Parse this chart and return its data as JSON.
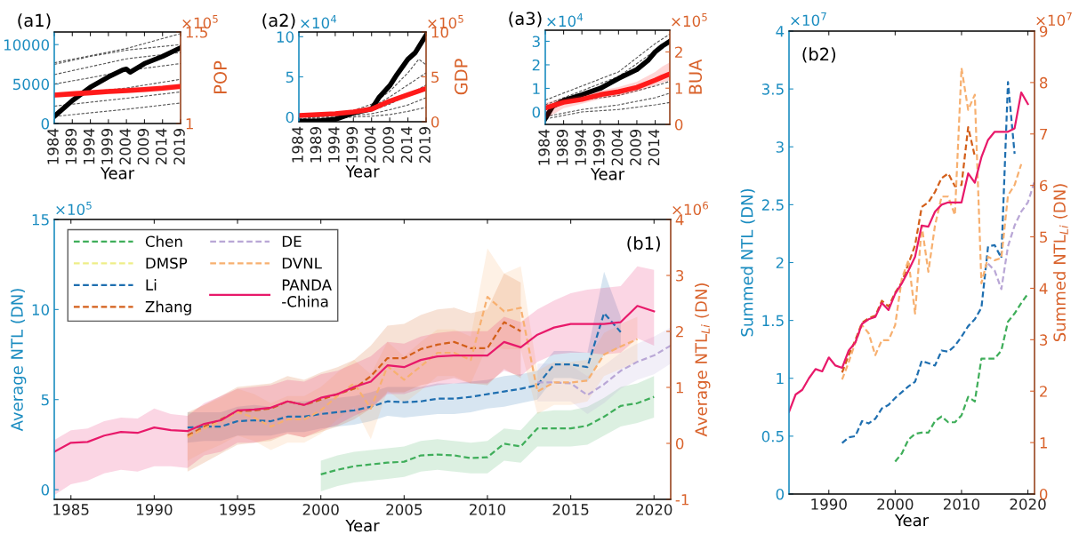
{
  "chart_data": [
    {
      "type": "line",
      "title": "(a1)",
      "xlabel": "Year",
      "y2label": "POP",
      "legend": false,
      "grid": false,
      "xlim": [
        1984,
        2019
      ],
      "xticks": [
        1984,
        1989,
        1994,
        1999,
        2004,
        2009,
        2014,
        2019
      ],
      "ylim": [
        0,
        11600
      ],
      "yticks": [
        0,
        5000,
        10000
      ],
      "y2lim": [
        1,
        1.5
      ],
      "y2ticks": [
        1,
        1.5
      ],
      "annotations": [
        "×10$^{5}$"
      ],
      "series": [
        {
          "color": "#555555",
          "line_style": "dashed",
          "x": [
            1984,
            2004,
            2019
          ],
          "values": [
            7700,
            9500,
            11400
          ]
        },
        {
          "color": "#555555",
          "line_style": "dashed",
          "x": [
            1984,
            1994,
            2004,
            2019
          ],
          "values": [
            7500,
            8500,
            9300,
            10000
          ]
        },
        {
          "color": "#555555",
          "line_style": "dashed",
          "x": [
            1984,
            1994,
            2004,
            2019
          ],
          "values": [
            6200,
            7200,
            8200,
            9000
          ]
        },
        {
          "color": "#555555",
          "line_style": "dashed",
          "x": [
            1984,
            1994,
            2004,
            2019
          ],
          "values": [
            5000,
            5800,
            6700,
            7600
          ]
        },
        {
          "color": "#555555",
          "line_style": "dashed",
          "x": [
            1984,
            2004,
            2019
          ],
          "values": [
            3600,
            4500,
            5600
          ]
        },
        {
          "color": "#555555",
          "line_style": "dashed",
          "x": [
            1984,
            2004,
            2019
          ],
          "values": [
            2200,
            3200,
            4000
          ]
        },
        {
          "color": "#555555",
          "line_style": "dashed",
          "x": [
            1984,
            2004,
            2019
          ],
          "values": [
            900,
            1800,
            2600
          ]
        },
        {
          "color": "#ff1a1a",
          "line_style": "solid",
          "axis": "y2",
          "x": [
            1984,
            1989,
            1994,
            1999,
            2004,
            2009,
            2014,
            2019
          ],
          "values": [
            1.155,
            1.162,
            1.168,
            1.175,
            1.18,
            1.186,
            1.193,
            1.203
          ],
          "lower": [
            1.14,
            1.147,
            1.153,
            1.16,
            1.165,
            1.171,
            1.178,
            1.188
          ],
          "upper": [
            1.17,
            1.177,
            1.183,
            1.19,
            1.195,
            1.201,
            1.208,
            1.218
          ]
        },
        {
          "color": "#000000",
          "line_style": "solid",
          "x": [
            1984,
            1989,
            1994,
            1999,
            2003,
            2004,
            2005,
            2009,
            2014,
            2019
          ],
          "values": [
            900,
            2900,
            4600,
            5900,
            6800,
            6900,
            6500,
            7600,
            8500,
            9600
          ]
        }
      ]
    },
    {
      "type": "line",
      "title": "(a2)",
      "xlabel": "Year",
      "y2label": "GDP",
      "legend": false,
      "grid": false,
      "xlim": [
        1984,
        2019
      ],
      "xticks": [
        1984,
        1989,
        1994,
        1999,
        2004,
        2009,
        2014,
        2019
      ],
      "ylim": [
        -0.59,
        10.59
      ],
      "yticks": [
        0,
        5,
        10
      ],
      "y2lim": [
        0,
        10
      ],
      "y2ticks": [
        0,
        5,
        10
      ],
      "annotations": [
        "×10$^{4}$",
        "×10$^{5}$"
      ],
      "series": [
        {
          "color": "#555555",
          "line_style": "dashed",
          "x": [
            1984,
            1999,
            2004,
            2009,
            2014,
            2017,
            2019
          ],
          "values": [
            -0.3,
            0.8,
            1.6,
            3.2,
            5.5,
            7.2,
            6.5
          ]
        },
        {
          "color": "#555555",
          "line_style": "dashed",
          "x": [
            1984,
            1999,
            2004,
            2009,
            2014,
            2019
          ],
          "values": [
            -0.3,
            0.6,
            1.2,
            2.5,
            4.0,
            5.5
          ]
        },
        {
          "color": "#555555",
          "line_style": "dashed",
          "x": [
            1984,
            1999,
            2004,
            2009,
            2014,
            2019
          ],
          "values": [
            -0.4,
            0.4,
            0.8,
            1.6,
            2.7,
            4.0
          ]
        },
        {
          "color": "#555555",
          "line_style": "dashed",
          "x": [
            1984,
            1999,
            2004,
            2009,
            2014,
            2019
          ],
          "values": [
            -0.5,
            0.2,
            0.4,
            0.9,
            1.5,
            2.4
          ]
        },
        {
          "color": "#555555",
          "line_style": "dashed",
          "x": [
            1984,
            1999,
            2004,
            2009,
            2014,
            2019
          ],
          "values": [
            -0.5,
            0.0,
            0.1,
            0.3,
            0.7,
            1.2
          ]
        },
        {
          "color": "#ff1a1a",
          "line_style": "solid",
          "axis": "y2",
          "x": [
            1984,
            1989,
            1994,
            1999,
            2004,
            2009,
            2014,
            2019
          ],
          "values": [
            0.7,
            0.8,
            0.9,
            1.1,
            1.4,
            2.3,
            3.0,
            3.7
          ]
        },
        {
          "color": "#000000",
          "line_style": "solid",
          "x": [
            1984,
            1989,
            1994,
            1999,
            2004,
            2006,
            2009,
            2011,
            2014,
            2016,
            2019
          ],
          "values": [
            -0.5,
            -0.5,
            -0.3,
            0.5,
            1.0,
            2.4,
            3.9,
            5.3,
            7.2,
            8.0,
            10.2
          ]
        }
      ]
    },
    {
      "type": "line",
      "title": "(a3)",
      "xlabel": "Year",
      "y2label": "BUA",
      "legend": false,
      "grid": false,
      "xlim": [
        1984,
        2018
      ],
      "xticks": [
        1984,
        1989,
        1994,
        1999,
        2004,
        2009,
        2014
      ],
      "ylim": [
        -0.53,
        3.47
      ],
      "yticks": [
        0,
        1,
        2,
        3
      ],
      "y2lim": [
        0,
        2.6
      ],
      "y2ticks": [
        0,
        1,
        2
      ],
      "annotations": [
        "×10$^{4}$",
        "×10$^{5}$"
      ],
      "series": [
        {
          "color": "#555555",
          "line_style": "dashed",
          "x": [
            1984,
            1994,
            2004,
            2014,
            2018
          ],
          "values": [
            0.5,
            1.1,
            1.7,
            2.9,
            3.3
          ]
        },
        {
          "color": "#555555",
          "line_style": "dashed",
          "x": [
            1984,
            1994,
            2004,
            2014,
            2018
          ],
          "values": [
            0.3,
            0.9,
            1.5,
            2.6,
            3.1
          ]
        },
        {
          "color": "#555555",
          "line_style": "dashed",
          "x": [
            1984,
            1994,
            2004,
            2014,
            2018
          ],
          "values": [
            0.2,
            0.5,
            0.7,
            1.1,
            1.3
          ]
        },
        {
          "color": "#555555",
          "line_style": "dashed",
          "x": [
            1984,
            1994,
            2004,
            2014,
            2018
          ],
          "values": [
            -0.2,
            0.1,
            0.3,
            0.6,
            0.8
          ]
        },
        {
          "color": "#555555",
          "line_style": "dashed",
          "x": [
            1984,
            1994,
            2004,
            2014,
            2018
          ],
          "values": [
            -0.3,
            0.0,
            0.1,
            0.3,
            0.4
          ]
        },
        {
          "color": "#ff1a1a",
          "line_style": "solid",
          "axis": "y2",
          "x": [
            1984,
            1989,
            1994,
            1999,
            2004,
            2009,
            2014,
            2016,
            2018
          ],
          "values": [
            0.45,
            0.61,
            0.69,
            0.82,
            0.9,
            1.02,
            1.22,
            1.31,
            1.39
          ],
          "lower": [
            0.15,
            0.45,
            0.57,
            0.7,
            0.78,
            0.9,
            1.08,
            1.15,
            1.22
          ],
          "upper": [
            0.6,
            0.72,
            0.8,
            0.93,
            1.03,
            1.18,
            1.45,
            1.6,
            1.71
          ]
        },
        {
          "color": "#000000",
          "line_style": "solid",
          "x": [
            1984,
            1986,
            1989,
            1994,
            1999,
            2004,
            2009,
            2012,
            2014,
            2016,
            2018
          ],
          "values": [
            -0.28,
            0.23,
            0.48,
            0.73,
            1.0,
            1.42,
            1.8,
            2.18,
            2.55,
            2.8,
            3.0
          ]
        }
      ]
    },
    {
      "type": "line",
      "title": "(b1)",
      "xlabel": "Year",
      "ylabel": "Average NTL (DN)",
      "y2label": "Average NTL$_{Li}$ (DN)",
      "legend": "top left",
      "grid": false,
      "xlim": [
        1984,
        2021
      ],
      "xticks": [
        1985,
        1990,
        1995,
        2000,
        2005,
        2010,
        2015,
        2020
      ],
      "ylim": [
        -0.54,
        15
      ],
      "yticks": [
        0,
        5,
        10,
        15
      ],
      "y2lim": [
        -1,
        4
      ],
      "y2ticks": [
        -1,
        0,
        1,
        2,
        3,
        4
      ],
      "annotations": [
        "×10$^{5}$",
        "×10$^{6}$"
      ],
      "series": [
        {
          "name": "Chen",
          "color": "#3fae5a",
          "line_style": "dashed",
          "x": [
            2000,
            2001,
            2002,
            2003,
            2004,
            2005,
            2006,
            2007,
            2008,
            2009,
            2010,
            2011,
            2012,
            2013,
            2014,
            2015,
            2016,
            2017,
            2018,
            2019,
            2020
          ],
          "values": [
            0.85,
            1.1,
            1.3,
            1.4,
            1.5,
            1.55,
            1.9,
            1.95,
            1.9,
            1.75,
            1.8,
            2.55,
            2.4,
            3.4,
            3.4,
            3.4,
            3.55,
            4.05,
            4.65,
            4.8,
            5.15
          ],
          "upper": [
            1.6,
            1.9,
            2.1,
            2.2,
            2.3,
            2.4,
            2.7,
            2.8,
            2.7,
            2.6,
            2.7,
            3.4,
            3.3,
            4.3,
            4.4,
            4.4,
            4.6,
            5.1,
            5.7,
            5.9,
            6.3
          ],
          "lower": [
            -0.1,
            0.2,
            0.4,
            0.5,
            0.6,
            0.7,
            1.0,
            1.1,
            1.0,
            0.9,
            0.9,
            1.6,
            1.5,
            2.4,
            2.4,
            2.4,
            2.5,
            3.0,
            3.5,
            3.7,
            4.0
          ]
        },
        {
          "name": "DMSP",
          "color": "#eeee88",
          "line_style": "dashed"
        },
        {
          "name": "Li",
          "color": "#1f6fb0",
          "line_style": "dashed",
          "x": [
            1992,
            1993,
            1994,
            1995,
            1996,
            1997,
            1998,
            1999,
            2000,
            2001,
            2002,
            2003,
            2004,
            2005,
            2006,
            2007,
            2008,
            2009,
            2010,
            2011,
            2012,
            2013,
            2014,
            2015,
            2016,
            2017,
            2018
          ],
          "values": [
            3.45,
            3.5,
            3.5,
            3.8,
            3.85,
            3.8,
            4.05,
            4.05,
            4.2,
            4.3,
            4.4,
            4.6,
            4.9,
            4.85,
            4.9,
            5.05,
            5.05,
            5.15,
            5.3,
            5.45,
            5.6,
            5.8,
            6.95,
            6.95,
            6.8,
            9.8,
            8.75
          ],
          "upper": [
            4.3,
            4.3,
            4.3,
            4.6,
            4.7,
            4.6,
            4.9,
            4.9,
            5.0,
            5.1,
            5.2,
            5.4,
            5.7,
            5.7,
            5.7,
            5.9,
            5.9,
            6.0,
            6.1,
            6.3,
            6.4,
            6.6,
            7.7,
            7.7,
            7.6,
            12.1,
            9.6
          ],
          "lower": [
            2.6,
            2.7,
            2.7,
            3.0,
            3.0,
            3.0,
            3.2,
            3.2,
            3.4,
            3.5,
            3.6,
            3.8,
            4.1,
            4.0,
            4.1,
            4.2,
            4.2,
            4.3,
            4.5,
            4.6,
            4.8,
            5.0,
            6.2,
            6.2,
            6.0,
            7.5,
            7.9
          ]
        },
        {
          "name": "Zhang",
          "color": "#d35f1a",
          "line_style": "dashed",
          "x": [
            1992,
            1993,
            1994,
            1995,
            1996,
            1997,
            1998,
            1999,
            2000,
            2001,
            2002,
            2003,
            2004,
            2005,
            2006,
            2007,
            2008,
            2009,
            2010,
            2011,
            2012
          ],
          "values": [
            3.0,
            3.5,
            3.9,
            4.35,
            4.4,
            4.5,
            4.9,
            4.7,
            5.0,
            5.3,
            5.6,
            6.3,
            7.3,
            7.3,
            7.8,
            8.05,
            8.2,
            7.85,
            7.85,
            9.3,
            8.8
          ],
          "upper": [
            4.3,
            4.7,
            5.2,
            5.7,
            5.8,
            5.9,
            6.3,
            6.1,
            6.5,
            6.8,
            7.2,
            8.0,
            9.1,
            9.2,
            9.7,
            10.0,
            10.1,
            9.8,
            10.0,
            12.0,
            11.5
          ],
          "lower": [
            1.0,
            1.5,
            2.0,
            2.5,
            2.6,
            2.7,
            3.1,
            2.9,
            3.2,
            3.5,
            3.9,
            4.5,
            5.4,
            5.4,
            5.8,
            6.0,
            6.2,
            5.9,
            5.8,
            6.7,
            6.2
          ]
        },
        {
          "name": "DE",
          "color": "#b9a7d6",
          "line_style": "dashed",
          "x": [
            2013,
            2014,
            2015,
            2016,
            2017,
            2018,
            2019,
            2020,
            2021
          ],
          "values": [
            5.95,
            5.95,
            5.9,
            5.25,
            5.85,
            6.6,
            7.1,
            7.45,
            8.0
          ],
          "upper": [
            7.0,
            7.0,
            6.9,
            6.3,
            6.9,
            7.6,
            8.1,
            8.5,
            9.0
          ],
          "lower": [
            4.9,
            4.9,
            4.9,
            4.2,
            4.8,
            5.6,
            6.1,
            6.4,
            7.0
          ]
        },
        {
          "name": "DVNL",
          "color": "#f7b070",
          "line_style": "dashed",
          "x": [
            1992,
            1993,
            1994,
            1995,
            1996,
            1997,
            1998,
            1999,
            2000,
            2001,
            2002,
            2003,
            2004,
            2005,
            2006,
            2007,
            2008,
            2009,
            2010,
            2011,
            2012,
            2013,
            2014,
            2015,
            2016,
            2017,
            2018,
            2019
          ],
          "values": [
            2.9,
            3.4,
            3.8,
            4.3,
            4.0,
            3.5,
            3.9,
            3.9,
            4.4,
            5.2,
            5.9,
            4.5,
            6.85,
            6.1,
            6.85,
            7.6,
            7.6,
            7.2,
            10.7,
            9.9,
            10.1,
            5.45,
            5.95,
            5.95,
            6.05,
            7.5,
            7.95,
            8.35
          ],
          "upper": [
            4.2,
            4.7,
            5.1,
            5.6,
            5.3,
            4.8,
            5.2,
            5.2,
            5.7,
            6.5,
            7.2,
            6.4,
            8.2,
            7.4,
            8.2,
            8.9,
            8.9,
            8.5,
            13.4,
            12.0,
            12.4,
            6.6,
            7.1,
            7.1,
            7.2,
            8.7,
            9.2,
            9.6
          ],
          "lower": [
            1.6,
            2.1,
            2.5,
            3.0,
            2.7,
            2.2,
            2.6,
            2.6,
            3.1,
            3.9,
            4.6,
            2.8,
            5.5,
            4.8,
            5.5,
            6.3,
            6.3,
            5.9,
            8.0,
            7.8,
            7.8,
            4.2,
            4.7,
            4.7,
            4.9,
            6.3,
            6.7,
            7.1
          ]
        },
        {
          "name": "PANDA\n-China",
          "color": "#e8196a",
          "line_style": "solid",
          "x": [
            1984,
            1985,
            1986,
            1987,
            1988,
            1989,
            1990,
            1991,
            1992,
            1993,
            1994,
            1995,
            1996,
            1997,
            1998,
            1999,
            2000,
            2001,
            2002,
            2003,
            2004,
            2005,
            2006,
            2007,
            2008,
            2009,
            2010,
            2011,
            2012,
            2013,
            2014,
            2015,
            2016,
            2017,
            2018,
            2019,
            2020
          ],
          "values": [
            2.1,
            2.6,
            2.65,
            3.0,
            3.2,
            3.15,
            3.45,
            3.3,
            3.25,
            3.65,
            3.85,
            4.4,
            4.45,
            4.55,
            4.9,
            4.7,
            5.1,
            5.3,
            5.7,
            6.0,
            6.9,
            6.8,
            7.2,
            7.4,
            7.45,
            7.45,
            7.45,
            8.2,
            7.9,
            8.6,
            9.0,
            9.2,
            9.2,
            9.2,
            9.3,
            10.2,
            9.9
          ],
          "upper": [
            2.75,
            3.3,
            3.4,
            3.8,
            4.0,
            3.95,
            4.5,
            4.2,
            4.1,
            4.8,
            5.2,
            5.6,
            5.7,
            5.8,
            6.1,
            6.0,
            6.4,
            6.6,
            7.0,
            7.4,
            8.2,
            8.1,
            8.5,
            8.7,
            8.8,
            8.8,
            8.8,
            9.6,
            9.3,
            10.0,
            10.5,
            10.9,
            11.1,
            11.2,
            11.3,
            12.4,
            12.2
          ],
          "lower": [
            -0.3,
            0.3,
            0.5,
            0.9,
            1.1,
            1.0,
            1.3,
            1.3,
            1.2,
            1.9,
            2.1,
            2.6,
            2.6,
            2.8,
            3.1,
            2.9,
            3.3,
            3.6,
            4.1,
            4.5,
            5.3,
            5.3,
            5.6,
            5.8,
            5.9,
            5.9,
            5.9,
            6.6,
            6.3,
            7.1,
            7.5,
            7.6,
            7.6,
            7.5,
            7.6,
            8.4,
            8.0
          ]
        }
      ]
    },
    {
      "type": "line",
      "title": "(b2)",
      "xlabel": "Year",
      "ylabel": "Summed NTL (DN)",
      "y2label": "Summed NTL$_{Li}$ (DN)",
      "legend": false,
      "grid": false,
      "xlim": [
        1984,
        2021
      ],
      "xticks": [
        1990,
        2000,
        2010,
        2020
      ],
      "ylim": [
        0,
        4
      ],
      "yticks": [
        0,
        0.5,
        1,
        1.5,
        2,
        2.5,
        3,
        3.5,
        4
      ],
      "y2lim": [
        0,
        9
      ],
      "y2ticks": [
        0,
        1,
        2,
        3,
        4,
        5,
        6,
        7,
        8,
        9
      ],
      "annotations": [
        "×10$^{7}$",
        "×10$^{7}$"
      ],
      "series": [
        {
          "color": "#3fae5a",
          "line_style": "dashed",
          "x": [
            2000,
            2001,
            2002,
            2003,
            2004,
            2005,
            2006,
            2007,
            2008,
            2009,
            2010,
            2011,
            2012,
            2013,
            2014,
            2015,
            2016,
            2017,
            2018,
            2019,
            2020
          ],
          "values": [
            0.28,
            0.35,
            0.47,
            0.52,
            0.53,
            0.53,
            0.63,
            0.67,
            0.62,
            0.62,
            0.68,
            0.84,
            0.8,
            1.17,
            1.17,
            1.17,
            1.24,
            1.49,
            1.56,
            1.65,
            1.73
          ]
        },
        {
          "color": "#1f6fb0",
          "line_style": "dashed",
          "x": [
            1992,
            1993,
            1994,
            1995,
            1996,
            1997,
            1998,
            1999,
            2000,
            2001,
            2002,
            2003,
            2004,
            2005,
            2006,
            2007,
            2008,
            2009,
            2010,
            2011,
            2012,
            2013,
            2014,
            2015,
            2016,
            2017,
            2018
          ],
          "values": [
            0.44,
            0.49,
            0.5,
            0.63,
            0.61,
            0.65,
            0.74,
            0.77,
            0.83,
            0.88,
            0.93,
            0.97,
            1.15,
            1.13,
            1.11,
            1.24,
            1.23,
            1.28,
            1.36,
            1.45,
            1.51,
            1.61,
            2.14,
            2.15,
            2.04,
            3.56,
            2.94
          ]
        },
        {
          "color": "#d35f1a",
          "line_style": "dashed",
          "x": [
            1992,
            1993,
            1994,
            1995,
            1996,
            1997,
            1998,
            1999,
            2000,
            2001,
            2002,
            2003,
            2004,
            2005,
            2006,
            2007,
            2008,
            2009,
            2010,
            2011,
            2012
          ],
          "values": [
            1.05,
            1.2,
            1.33,
            1.48,
            1.52,
            1.54,
            1.67,
            1.62,
            1.74,
            1.83,
            1.99,
            2.15,
            2.48,
            2.52,
            2.61,
            2.73,
            2.77,
            2.66,
            2.67,
            3.17,
            2.92
          ]
        },
        {
          "color": "#b9a7d6",
          "line_style": "dashed",
          "x": [
            2014,
            2015,
            2016,
            2017,
            2018,
            2019,
            2020,
            2021
          ],
          "values": [
            1.99,
            1.93,
            1.77,
            2.14,
            2.32,
            2.44,
            2.52,
            2.7
          ]
        },
        {
          "color": "#f7b070",
          "line_style": "dashed",
          "x": [
            1992,
            1993,
            1994,
            1995,
            1996,
            1997,
            1998,
            1999,
            2000,
            2001,
            2002,
            2003,
            2004,
            2005,
            2006,
            2007,
            2008,
            2009,
            2010,
            2011,
            2012,
            2013,
            2014,
            2015,
            2016,
            2017,
            2018,
            2019
          ],
          "values": [
            0.99,
            1.14,
            1.31,
            1.46,
            1.39,
            1.2,
            1.33,
            1.33,
            1.46,
            1.86,
            2.02,
            1.56,
            2.32,
            1.92,
            2.32,
            2.57,
            2.57,
            2.41,
            3.68,
            3.32,
            3.45,
            1.82,
            2.05,
            2.02,
            2.04,
            2.58,
            2.67,
            2.85
          ]
        },
        {
          "color": "#e8196a",
          "line_style": "solid",
          "x": [
            1984,
            1985,
            1986,
            1987,
            1988,
            1989,
            1990,
            1991,
            1992,
            1993,
            1994,
            1995,
            1996,
            1997,
            1998,
            1999,
            2000,
            2001,
            2002,
            2003,
            2004,
            2005,
            2006,
            2007,
            2008,
            2009,
            2010,
            2011,
            2012,
            2013,
            2014,
            2015,
            2016,
            2017,
            2018,
            2019,
            2020
          ],
          "values": [
            0.71,
            0.86,
            0.9,
            1.0,
            1.08,
            1.06,
            1.18,
            1.11,
            1.09,
            1.24,
            1.31,
            1.47,
            1.51,
            1.53,
            1.65,
            1.59,
            1.73,
            1.82,
            1.93,
            2.05,
            2.32,
            2.31,
            2.44,
            2.5,
            2.52,
            2.52,
            2.52,
            2.77,
            2.69,
            2.91,
            3.06,
            3.13,
            3.13,
            3.13,
            3.16,
            3.47,
            3.37
          ]
        }
      ]
    }
  ]
}
